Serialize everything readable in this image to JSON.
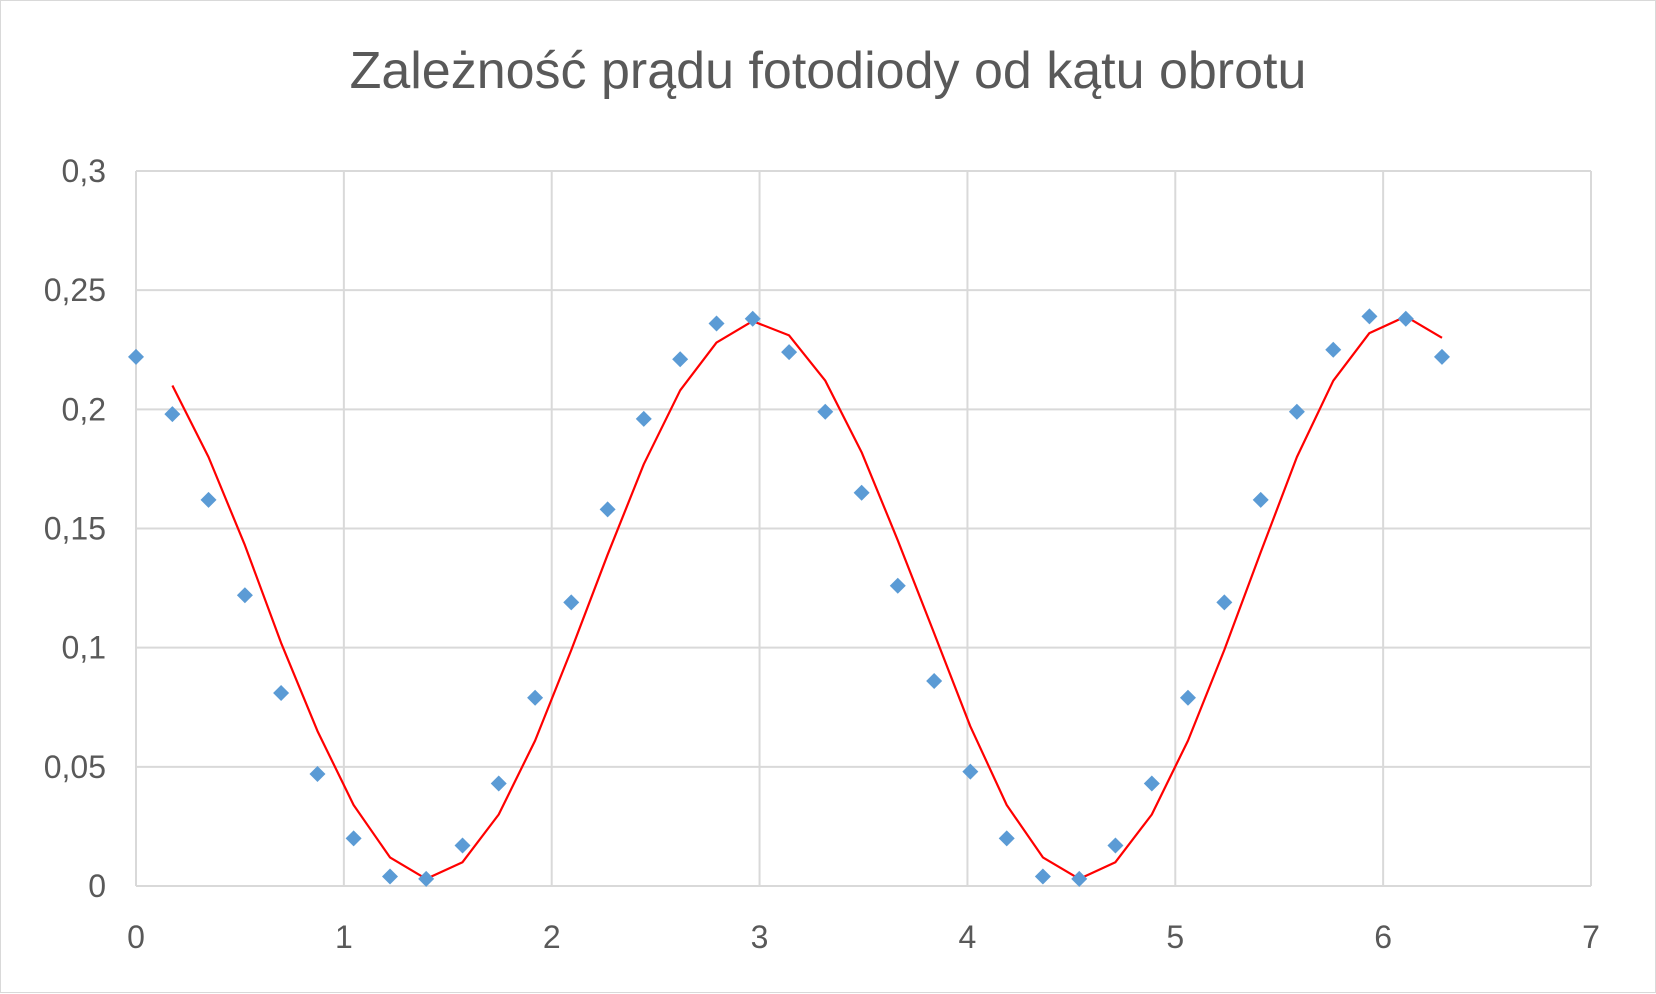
{
  "chart_data": {
    "type": "scatter",
    "title": "Zależność prądu fotodiody od kątu obrotu",
    "xlabel": "",
    "ylabel": "",
    "xlim": [
      0,
      7
    ],
    "ylim": [
      0,
      0.3
    ],
    "x_ticks": [
      "0",
      "1",
      "2",
      "3",
      "4",
      "5",
      "6",
      "7"
    ],
    "y_ticks": [
      "0",
      "0,05",
      "0,1",
      "0,15",
      "0,2",
      "0,25",
      "0,3"
    ],
    "grid": true,
    "legend": "none",
    "series": [
      {
        "kind": "scatter",
        "marker": "diamond",
        "color": "#5b9bd5",
        "x": [
          0,
          0.175,
          0.349,
          0.524,
          0.698,
          0.873,
          1.047,
          1.222,
          1.396,
          1.571,
          1.745,
          1.92,
          2.094,
          2.269,
          2.443,
          2.618,
          2.793,
          2.967,
          3.142,
          3.316,
          3.491,
          3.665,
          3.84,
          4.014,
          4.189,
          4.363,
          4.538,
          4.712,
          4.887,
          5.061,
          5.236,
          5.411,
          5.585,
          5.76,
          5.934,
          6.109,
          6.283
        ],
        "y": [
          0.222,
          0.198,
          0.162,
          0.122,
          0.081,
          0.047,
          0.02,
          0.004,
          0.003,
          0.017,
          0.043,
          0.079,
          0.119,
          0.158,
          0.196,
          0.221,
          0.236,
          0.238,
          0.224,
          0.199,
          0.165,
          0.126,
          0.086,
          0.048,
          0.02,
          0.004,
          0.003,
          0.017,
          0.043,
          0.079,
          0.119,
          0.162,
          0.199,
          0.225,
          0.239,
          0.238,
          0.222
        ]
      },
      {
        "kind": "line",
        "color": "#ff0000",
        "x": [
          0.175,
          0.349,
          0.524,
          0.698,
          0.873,
          1.047,
          1.222,
          1.396,
          1.571,
          1.745,
          1.92,
          2.094,
          2.269,
          2.443,
          2.618,
          2.793,
          2.967,
          3.142,
          3.316,
          3.491,
          3.665,
          3.84,
          4.014,
          4.189,
          4.363,
          4.538,
          4.712,
          4.887,
          5.061,
          5.236,
          5.411,
          5.585,
          5.76,
          5.934,
          6.109,
          6.283
        ],
        "y": [
          0.21,
          0.18,
          0.143,
          0.102,
          0.065,
          0.034,
          0.012,
          0.003,
          0.01,
          0.03,
          0.061,
          0.099,
          0.139,
          0.177,
          0.208,
          0.228,
          0.237,
          0.231,
          0.212,
          0.182,
          0.145,
          0.106,
          0.067,
          0.034,
          0.012,
          0.003,
          0.01,
          0.03,
          0.061,
          0.099,
          0.14,
          0.18,
          0.212,
          0.232,
          0.239,
          0.23
        ]
      }
    ]
  }
}
